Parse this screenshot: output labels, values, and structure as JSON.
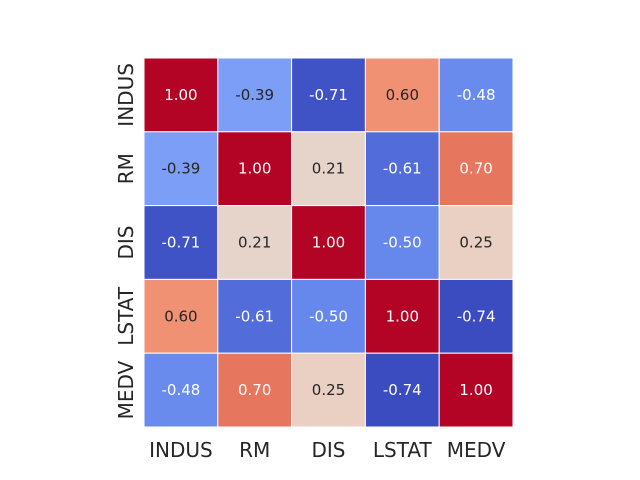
{
  "chart_data": {
    "type": "heatmap",
    "title": "",
    "xlabel": "",
    "ylabel": "",
    "x_categories": [
      "INDUS",
      "RM",
      "DIS",
      "LSTAT",
      "MEDV"
    ],
    "y_categories": [
      "INDUS",
      "RM",
      "DIS",
      "LSTAT",
      "MEDV"
    ],
    "values": [
      [
        1.0,
        -0.39,
        -0.71,
        0.6,
        -0.48
      ],
      [
        -0.39,
        1.0,
        0.21,
        -0.61,
        0.7
      ],
      [
        -0.71,
        0.21,
        1.0,
        -0.5,
        0.25
      ],
      [
        0.6,
        -0.61,
        -0.5,
        1.0,
        -0.74
      ],
      [
        -0.48,
        0.7,
        0.25,
        -0.74,
        1.0
      ]
    ],
    "value_labels": [
      [
        "1.00",
        "-0.39",
        "-0.71",
        "0.60",
        "-0.48"
      ],
      [
        "-0.39",
        "1.00",
        "0.21",
        "-0.61",
        "0.70"
      ],
      [
        "-0.71",
        "0.21",
        "1.00",
        "-0.50",
        "0.25"
      ],
      [
        "0.60",
        "-0.61",
        "-0.50",
        "1.00",
        "-0.74"
      ],
      [
        "-0.48",
        "0.70",
        "0.25",
        "-0.74",
        "1.00"
      ]
    ],
    "colormap": "coolwarm",
    "color_range": [
      -0.74,
      1.0
    ],
    "colorbar": false,
    "cell_border_color": "#ffffff",
    "annotations": true
  }
}
